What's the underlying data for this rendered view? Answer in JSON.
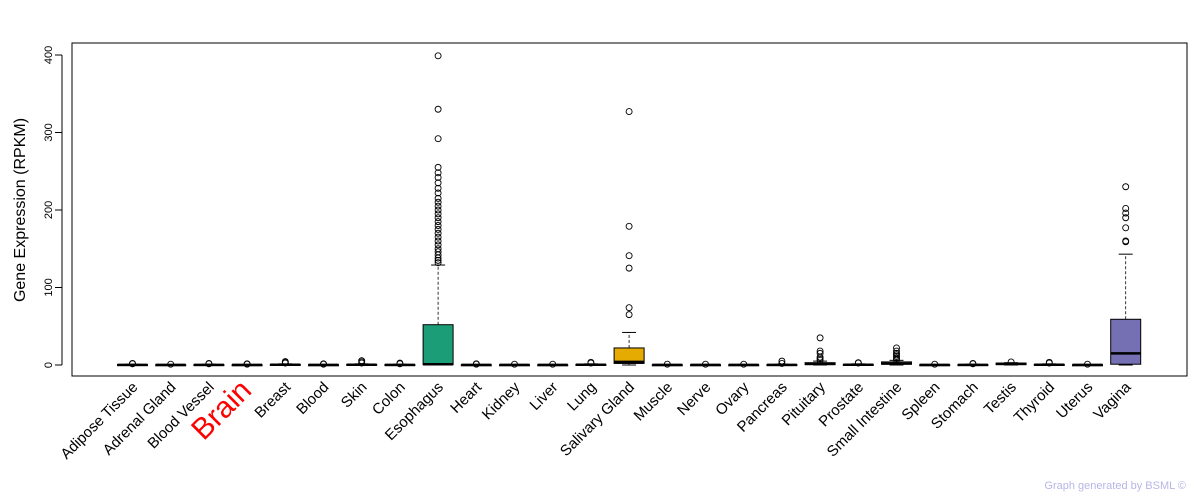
{
  "credit": "Graph generated by BSML ©",
  "chart_data": {
    "type": "box",
    "ylabel": "Gene Expression (RPKM)",
    "xlabel": "",
    "ylim": [
      0,
      410
    ],
    "yticks": [
      0,
      100,
      200,
      300,
      400
    ],
    "highlight_category": "Brain",
    "highlight_color": "#ff0000",
    "categories": [
      "Adipose Tissue",
      "Adrenal Gland",
      "Blood Vessel",
      "Brain",
      "Breast",
      "Blood",
      "Skin",
      "Colon",
      "Esophagus",
      "Heart",
      "Kidney",
      "Liver",
      "Lung",
      "Salivary Gland",
      "Muscle",
      "Nerve",
      "Ovary",
      "Pancreas",
      "Pituitary",
      "Prostate",
      "Small Intestine",
      "Spleen",
      "Stomach",
      "Testis",
      "Thyroid",
      "Uterus",
      "Vagina"
    ],
    "boxes": [
      {
        "name": "Adipose Tissue",
        "q1": 0,
        "median": 0.2,
        "q3": 0.5,
        "whisker_low": 0,
        "whisker_high": 1,
        "outliers": [
          1.5,
          2
        ],
        "color": "#ffffff"
      },
      {
        "name": "Adrenal Gland",
        "q1": 0,
        "median": 0.1,
        "q3": 0.3,
        "whisker_low": 0,
        "whisker_high": 0.6,
        "outliers": [
          1
        ],
        "color": "#ffffff"
      },
      {
        "name": "Blood Vessel",
        "q1": 0,
        "median": 0.2,
        "q3": 0.5,
        "whisker_low": 0,
        "whisker_high": 1,
        "outliers": [
          1.5,
          2
        ],
        "color": "#ffffff"
      },
      {
        "name": "Brain",
        "q1": 0,
        "median": 0.1,
        "q3": 0.3,
        "whisker_low": 0,
        "whisker_high": 0.6,
        "outliers": [
          1,
          1.5
        ],
        "color": "#ffffff"
      },
      {
        "name": "Breast",
        "q1": 0,
        "median": 0.3,
        "q3": 0.8,
        "whisker_low": 0,
        "whisker_high": 1.5,
        "outliers": [
          2.5,
          3.5,
          4.5
        ],
        "color": "#ffffff"
      },
      {
        "name": "Blood",
        "q1": 0,
        "median": 0.1,
        "q3": 0.3,
        "whisker_low": 0,
        "whisker_high": 0.6,
        "outliers": [
          1,
          1.5
        ],
        "color": "#ffffff"
      },
      {
        "name": "Skin",
        "q1": 0,
        "median": 0.3,
        "q3": 0.8,
        "whisker_low": 0,
        "whisker_high": 1.5,
        "outliers": [
          2.5,
          4,
          5.5
        ],
        "color": "#ffffff"
      },
      {
        "name": "Colon",
        "q1": 0,
        "median": 0.2,
        "q3": 0.5,
        "whisker_low": 0,
        "whisker_high": 1,
        "outliers": [
          1.5,
          2.5
        ],
        "color": "#ffffff"
      },
      {
        "name": "Esophagus",
        "q1": 0.5,
        "median": 1,
        "q3": 52,
        "whisker_low": 0,
        "whisker_high": 129,
        "outliers": [
          132,
          135,
          138,
          142,
          146,
          150,
          155,
          160,
          165,
          170,
          175,
          180,
          185,
          190,
          195,
          200,
          205,
          210,
          215,
          222,
          228,
          235,
          242,
          248,
          255,
          292,
          330,
          399
        ],
        "color": "#1b9e77"
      },
      {
        "name": "Heart",
        "q1": 0,
        "median": 0.1,
        "q3": 0.3,
        "whisker_low": 0,
        "whisker_high": 0.6,
        "outliers": [
          1,
          1.5
        ],
        "color": "#ffffff"
      },
      {
        "name": "Kidney",
        "q1": 0,
        "median": 0.1,
        "q3": 0.3,
        "whisker_low": 0,
        "whisker_high": 0.6,
        "outliers": [
          1
        ],
        "color": "#ffffff"
      },
      {
        "name": "Liver",
        "q1": 0,
        "median": 0.1,
        "q3": 0.3,
        "whisker_low": 0,
        "whisker_high": 0.6,
        "outliers": [
          1
        ],
        "color": "#ffffff"
      },
      {
        "name": "Lung",
        "q1": 0,
        "median": 0.3,
        "q3": 0.8,
        "whisker_low": 0,
        "whisker_high": 1.5,
        "outliers": [
          2.5,
          3.5
        ],
        "color": "#ffffff"
      },
      {
        "name": "Salivary Gland",
        "q1": 2,
        "median": 4,
        "q3": 22,
        "whisker_low": 0,
        "whisker_high": 42,
        "outliers": [
          65,
          74,
          125,
          141,
          179,
          327
        ],
        "color": "#e6ab02"
      },
      {
        "name": "Muscle",
        "q1": 0,
        "median": 0.1,
        "q3": 0.3,
        "whisker_low": 0,
        "whisker_high": 0.6,
        "outliers": [
          1
        ],
        "color": "#ffffff"
      },
      {
        "name": "Nerve",
        "q1": 0,
        "median": 0.1,
        "q3": 0.3,
        "whisker_low": 0,
        "whisker_high": 0.6,
        "outliers": [
          1
        ],
        "color": "#ffffff"
      },
      {
        "name": "Ovary",
        "q1": 0,
        "median": 0.1,
        "q3": 0.3,
        "whisker_low": 0,
        "whisker_high": 0.6,
        "outliers": [
          1
        ],
        "color": "#ffffff"
      },
      {
        "name": "Pancreas",
        "q1": 0,
        "median": 0.2,
        "q3": 0.5,
        "whisker_low": 0,
        "whisker_high": 1,
        "outliers": [
          2,
          5
        ],
        "color": "#ffffff"
      },
      {
        "name": "Pituitary",
        "q1": 0.5,
        "median": 1.5,
        "q3": 3,
        "whisker_low": 0,
        "whisker_high": 5,
        "outliers": [
          6,
          8,
          10,
          15,
          18,
          35
        ],
        "color": "#ffffff"
      },
      {
        "name": "Prostate",
        "q1": 0,
        "median": 0.3,
        "q3": 0.8,
        "whisker_low": 0,
        "whisker_high": 1.5,
        "outliers": [
          2.5,
          3
        ],
        "color": "#ffffff"
      },
      {
        "name": "Small Intestine",
        "q1": 1,
        "median": 2,
        "q3": 4,
        "whisker_low": 0,
        "whisker_high": 6,
        "outliers": [
          7,
          9,
          11,
          13,
          15,
          18,
          22
        ],
        "color": "#ffffff"
      },
      {
        "name": "Spleen",
        "q1": 0,
        "median": 0.1,
        "q3": 0.3,
        "whisker_low": 0,
        "whisker_high": 0.6,
        "outliers": [
          1
        ],
        "color": "#ffffff"
      },
      {
        "name": "Stomach",
        "q1": 0,
        "median": 0.2,
        "q3": 0.5,
        "whisker_low": 0,
        "whisker_high": 1,
        "outliers": [
          1.5,
          2
        ],
        "color": "#ffffff"
      },
      {
        "name": "Testis",
        "q1": 0.5,
        "median": 1.5,
        "q3": 2.5,
        "whisker_low": 0,
        "whisker_high": 3,
        "outliers": [
          4
        ],
        "color": "#ffffff"
      },
      {
        "name": "Thyroid",
        "q1": 0,
        "median": 0.3,
        "q3": 0.8,
        "whisker_low": 0,
        "whisker_high": 1.5,
        "outliers": [
          2.5,
          3.5
        ],
        "color": "#ffffff"
      },
      {
        "name": "Uterus",
        "q1": 0,
        "median": 0.1,
        "q3": 0.3,
        "whisker_low": 0,
        "whisker_high": 0.6,
        "outliers": [
          1
        ],
        "color": "#ffffff"
      },
      {
        "name": "Vagina",
        "q1": 1,
        "median": 15,
        "q3": 59,
        "whisker_low": 0,
        "whisker_high": 143,
        "outliers": [
          159,
          160,
          177,
          190,
          196,
          202,
          230
        ],
        "color": "#7570b3"
      }
    ]
  }
}
